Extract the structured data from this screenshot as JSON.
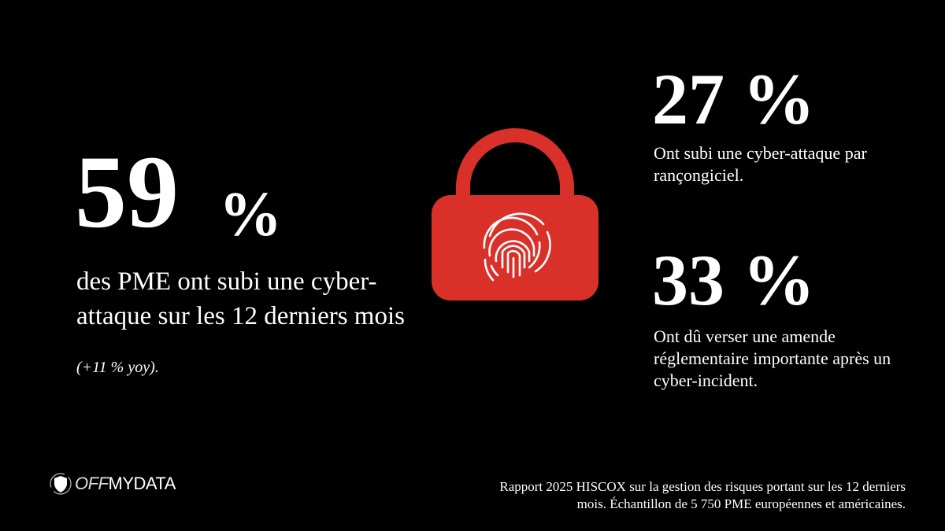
{
  "main_stat": {
    "value": "59",
    "unit": "%",
    "caption": "des PME ont subi une cyber-attaque sur les 12 derniers mois",
    "note": "(+11 % yoy)."
  },
  "stats": [
    {
      "value": "27 %",
      "caption": "Ont subi une cyber-attaque par rançongiciel."
    },
    {
      "value": "33 %",
      "caption": "Ont dû verser une amende réglementaire importante après un cyber-incident."
    }
  ],
  "icons": {
    "center": "padlock-fingerprint-icon",
    "logo": "shield-icon"
  },
  "colors": {
    "background": "#000000",
    "lock": "#d9302a",
    "text": "#ffffff"
  },
  "logo": {
    "part1": "OFF",
    "part2": "MYDATA"
  },
  "footer": {
    "line1": "Rapport 2025 HISCOX sur la gestion des risques portant sur les 12 derniers",
    "line2": "mois. Échantillon de 5 750 PME européennes et américaines."
  }
}
